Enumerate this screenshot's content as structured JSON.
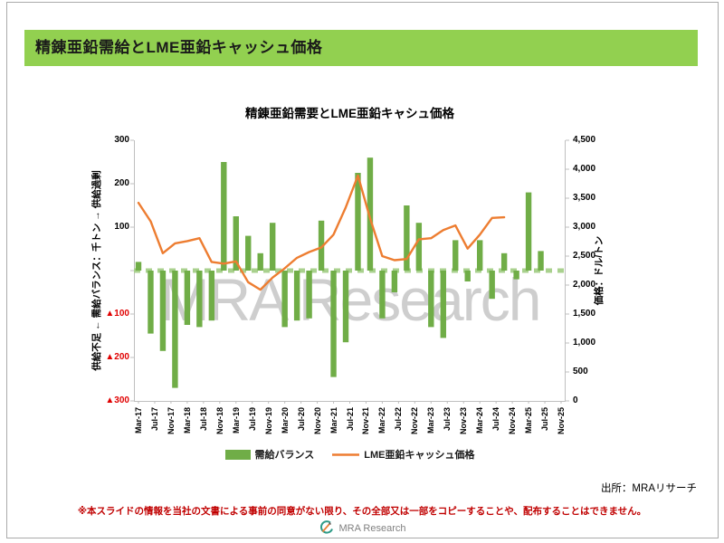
{
  "slide": {
    "header_title": "精錬亜鉛需給とLME亜鉛キャッシュ価格",
    "watermark": "MRA Research",
    "source_note": "出所：MRAリサーチ",
    "disclaimer": "※本スライドの情報を当社の文書による事前の同意がない限り、その全部又は一部をコピーすることや、配布することはできません。",
    "footer_logo_text": "MRA Research"
  },
  "colors": {
    "header_bg": "#92D050",
    "bar": "#70AD47",
    "zero_dash": "#A9D18E",
    "line": "#ED7D31",
    "axis": "#BFBFBF",
    "negative_tick": "#E00000",
    "watermark": "#C6C6C6",
    "disclaimer": "#C00000"
  },
  "chart_data": {
    "type": "bar+line combo",
    "title": "精錬亜鉛需要とLME亜鉛キャシュ価格",
    "left_axis": {
      "title": "供給不足 ← 需給バランス：千トン → 供給過剰",
      "min": -300,
      "max": 300,
      "step": 100,
      "tick_labels_top_down": [
        "300",
        "200",
        "100",
        "",
        "▲100",
        "▲200",
        "▲300"
      ]
    },
    "right_axis": {
      "title": "価格：ドル/トン",
      "min": 0,
      "max": 4500,
      "step": 500,
      "tick_labels_top_down": [
        "4,500",
        "4,000",
        "3,500",
        "3,000",
        "2,500",
        "2,000",
        "1,500",
        "1,000",
        "500",
        "0"
      ]
    },
    "x_axis": {
      "first_month": "Mar-17",
      "last_month": "Nov-25",
      "label_interval_months": 4,
      "tick_labels": [
        "Mar-17",
        "Jul-17",
        "Nov-17",
        "Mar-18",
        "Jul-18",
        "Nov-18",
        "Mar-19",
        "Jul-19",
        "Nov-19",
        "Mar-20",
        "Jul-20",
        "Nov-20",
        "Mar-21",
        "Jul-21",
        "Nov-21",
        "Mar-22",
        "Jul-22",
        "Nov-22",
        "Mar-23",
        "Jul-23",
        "Nov-23",
        "Mar-24",
        "Jul-24",
        "Nov-24",
        "Mar-25",
        "Jul-25",
        "Nov-25"
      ]
    },
    "legend_position": "bottom",
    "grid": false,
    "series": [
      {
        "name": "需給バランス",
        "type": "bar",
        "unit": "千トン",
        "points": [
          [
            "Mar-17",
            20
          ],
          [
            "Jun-17",
            -145
          ],
          [
            "Sep-17",
            -185
          ],
          [
            "Dec-17",
            -270
          ],
          [
            "Mar-18",
            -125
          ],
          [
            "Jun-18",
            -130
          ],
          [
            "Sep-18",
            -115
          ],
          [
            "Dec-18",
            250
          ],
          [
            "Mar-19",
            125
          ],
          [
            "Jun-19",
            80
          ],
          [
            "Sep-19",
            40
          ],
          [
            "Dec-19",
            110
          ],
          [
            "Mar-20",
            -130
          ],
          [
            "Jun-20",
            -115
          ],
          [
            "Sep-20",
            -110
          ],
          [
            "Dec-20",
            115
          ],
          [
            "Mar-21",
            -245
          ],
          [
            "Jun-21",
            -165
          ],
          [
            "Sep-21",
            225
          ],
          [
            "Dec-21",
            260
          ],
          [
            "Mar-22",
            -110
          ],
          [
            "Jun-22",
            -50
          ],
          [
            "Sep-22",
            150
          ],
          [
            "Dec-22",
            110
          ],
          [
            "Mar-23",
            -130
          ],
          [
            "Jun-23",
            -155
          ],
          [
            "Sep-23",
            70
          ],
          [
            "Dec-23",
            -25
          ],
          [
            "Mar-24",
            70
          ],
          [
            "Jun-24",
            -65
          ],
          [
            "Sep-24",
            40
          ],
          [
            "Dec-24",
            -20
          ],
          [
            "Mar-25",
            180
          ],
          [
            "Jun-25",
            45
          ]
        ]
      },
      {
        "name": "LME亜鉛キャッシュ価格",
        "type": "line",
        "unit": "ドル/トン",
        "points": [
          [
            "Mar-17",
            3420
          ],
          [
            "Jun-17",
            3100
          ],
          [
            "Sep-17",
            2550
          ],
          [
            "Dec-17",
            2720
          ],
          [
            "Mar-18",
            2760
          ],
          [
            "Jun-18",
            2810
          ],
          [
            "Sep-18",
            2400
          ],
          [
            "Dec-18",
            2370
          ],
          [
            "Mar-19",
            2410
          ],
          [
            "Jun-19",
            2050
          ],
          [
            "Sep-19",
            1920
          ],
          [
            "Dec-19",
            2130
          ],
          [
            "Mar-20",
            2290
          ],
          [
            "Jun-20",
            2470
          ],
          [
            "Sep-20",
            2570
          ],
          [
            "Dec-20",
            2650
          ],
          [
            "Mar-21",
            2870
          ],
          [
            "Jun-21",
            3340
          ],
          [
            "Sep-21",
            3890
          ],
          [
            "Dec-21",
            3150
          ],
          [
            "Mar-22",
            2500
          ],
          [
            "Jun-22",
            2430
          ],
          [
            "Sep-22",
            2450
          ],
          [
            "Dec-22",
            2790
          ],
          [
            "Mar-23",
            2810
          ],
          [
            "Jun-23",
            2950
          ],
          [
            "Sep-23",
            3030
          ],
          [
            "Dec-23",
            2630
          ],
          [
            "Mar-24",
            2870
          ],
          [
            "Jun-24",
            3160
          ],
          [
            "Sep-24",
            3170
          ]
        ]
      }
    ]
  }
}
